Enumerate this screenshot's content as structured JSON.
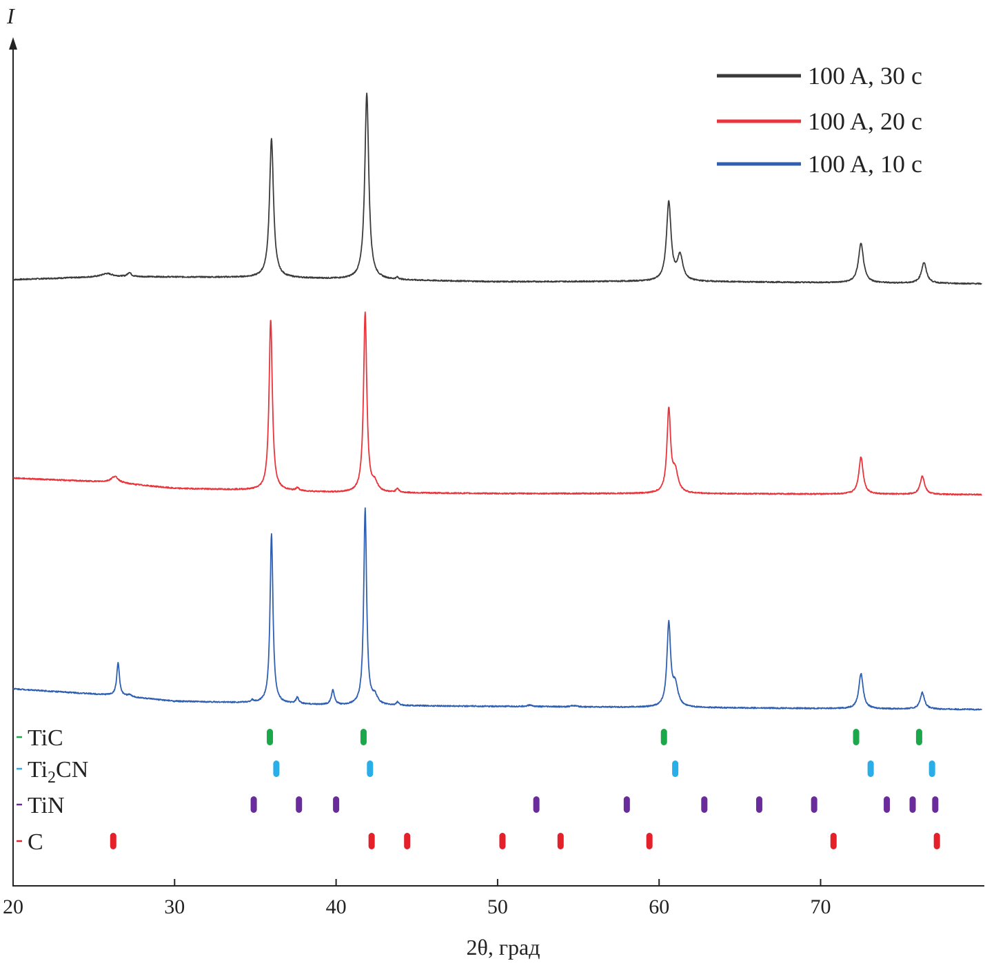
{
  "chart_data": {
    "type": "line",
    "title": "",
    "xlabel": "2θ, град",
    "ylabel": "I",
    "xlim": [
      20,
      80
    ],
    "xticks": [
      20,
      30,
      40,
      50,
      60,
      70
    ],
    "grid": false,
    "legend_position": "top-right",
    "series": [
      {
        "name": "100 A, 30 c",
        "color": "#3a3a3a",
        "baseline": [
          [
            20,
            0.02
          ],
          [
            26,
            0.035
          ],
          [
            36,
            0.03
          ],
          [
            42,
            0.02
          ],
          [
            50,
            0.01
          ],
          [
            60,
            0.012
          ],
          [
            80,
            0.0
          ]
        ],
        "peaks": [
          [
            25.8,
            0.015,
            0.6
          ],
          [
            27.2,
            0.02,
            0.2
          ],
          [
            36.0,
            0.67,
            0.22
          ],
          [
            41.9,
            0.9,
            0.22
          ],
          [
            43.8,
            0.01,
            0.15
          ],
          [
            60.6,
            0.38,
            0.25
          ],
          [
            61.3,
            0.12,
            0.3
          ],
          [
            72.5,
            0.19,
            0.28
          ],
          [
            76.4,
            0.1,
            0.28
          ]
        ]
      },
      {
        "name": "100 A, 20 c",
        "color": "#e8343a",
        "baseline": [
          [
            20,
            0.08
          ],
          [
            26,
            0.06
          ],
          [
            30,
            0.03
          ],
          [
            36,
            0.02
          ],
          [
            40,
            0.01
          ],
          [
            50,
            0.005
          ],
          [
            60,
            0.005
          ],
          [
            80,
            0.0
          ]
        ],
        "peaks": [
          [
            26.3,
            0.03,
            0.4
          ],
          [
            35.95,
            0.83,
            0.18
          ],
          [
            37.6,
            0.015,
            0.15
          ],
          [
            41.8,
            0.87,
            0.18
          ],
          [
            42.4,
            0.04,
            0.3
          ],
          [
            43.8,
            0.02,
            0.15
          ],
          [
            60.6,
            0.4,
            0.2
          ],
          [
            61.0,
            0.1,
            0.3
          ],
          [
            72.5,
            0.18,
            0.24
          ],
          [
            76.3,
            0.09,
            0.24
          ]
        ]
      },
      {
        "name": "100 A, 10 c",
        "color": "#2f5fb0",
        "baseline": [
          [
            20,
            0.1
          ],
          [
            26,
            0.07
          ],
          [
            30,
            0.04
          ],
          [
            36,
            0.03
          ],
          [
            40,
            0.02
          ],
          [
            50,
            0.015
          ],
          [
            60,
            0.01
          ],
          [
            80,
            0.0
          ]
        ],
        "peaks": [
          [
            26.5,
            0.16,
            0.15
          ],
          [
            27.2,
            0.01,
            0.2
          ],
          [
            34.8,
            0.01,
            0.15
          ],
          [
            36.0,
            0.82,
            0.16
          ],
          [
            37.6,
            0.03,
            0.15
          ],
          [
            39.8,
            0.07,
            0.17
          ],
          [
            41.8,
            0.95,
            0.16
          ],
          [
            42.4,
            0.04,
            0.3
          ],
          [
            43.8,
            0.015,
            0.15
          ],
          [
            52.0,
            0.007,
            0.3
          ],
          [
            54.7,
            0.006,
            0.3
          ],
          [
            60.6,
            0.4,
            0.2
          ],
          [
            61.0,
            0.1,
            0.3
          ],
          [
            72.5,
            0.17,
            0.24
          ],
          [
            76.3,
            0.08,
            0.24
          ]
        ]
      }
    ],
    "reference_phases": [
      {
        "name": "TiC",
        "color": "#1ba84a",
        "positions": [
          35.9,
          41.7,
          60.3,
          72.2,
          76.1
        ]
      },
      {
        "name": "Ti2CN",
        "name_main": "Ti",
        "name_sub": "2",
        "name_rest": "CN",
        "color": "#29aee8",
        "positions": [
          36.3,
          42.1,
          61.0,
          73.1,
          76.9
        ]
      },
      {
        "name": "TiN",
        "color": "#6a2c9a",
        "positions": [
          34.9,
          37.7,
          40.0,
          52.4,
          58.0,
          62.8,
          66.2,
          69.6,
          74.1,
          75.7,
          77.1
        ]
      },
      {
        "name": "C",
        "color": "#e4202a",
        "positions": [
          26.2,
          42.2,
          44.4,
          50.3,
          53.9,
          59.4,
          70.8,
          77.2
        ]
      }
    ]
  }
}
